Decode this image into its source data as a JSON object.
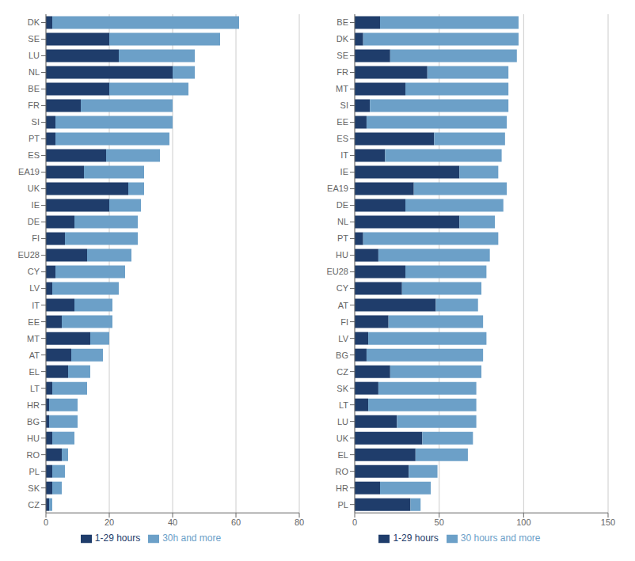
{
  "chart_data": [
    {
      "type": "bar",
      "orientation": "horizontal",
      "stacked": true,
      "categories": [
        "DK",
        "SE",
        "LU",
        "NL",
        "BE",
        "FR",
        "SI",
        "PT",
        "ES",
        "EA19",
        "UK",
        "IE",
        "DE",
        "FI",
        "EU28",
        "CY",
        "LV",
        "IT",
        "EE",
        "MT",
        "AT",
        "EL",
        "LT",
        "HR",
        "BG",
        "HU",
        "RO",
        "PL",
        "SK",
        "CZ"
      ],
      "series": [
        {
          "name": "1-29 hours",
          "color": "#1F3D6B",
          "values": [
            2,
            20,
            23,
            40,
            20,
            11,
            3,
            3,
            19,
            12,
            26,
            20,
            9,
            6,
            13,
            3,
            2,
            9,
            5,
            14,
            8,
            7,
            2,
            1,
            1,
            2,
            5,
            2,
            2,
            1
          ]
        },
        {
          "name": "30h and more",
          "color": "#6CA0C8",
          "values": [
            59,
            35,
            24,
            7,
            25,
            29,
            37,
            36,
            17,
            19,
            5,
            10,
            20,
            23,
            14,
            22,
            21,
            12,
            16,
            6,
            10,
            7,
            11,
            9,
            9,
            7,
            2,
            4,
            3,
            1
          ]
        }
      ],
      "xlim": [
        0,
        80
      ],
      "xticks": [
        0,
        20,
        40,
        60,
        80
      ],
      "grid": true,
      "legend": "bottom"
    },
    {
      "type": "bar",
      "orientation": "horizontal",
      "stacked": true,
      "categories": [
        "BE",
        "DK",
        "SE",
        "FR",
        "MT",
        "SI",
        "EE",
        "ES",
        "IT",
        "IE",
        "EA19",
        "DE",
        "NL",
        "PT",
        "HU",
        "EU28",
        "CY",
        "AT",
        "FI",
        "LV",
        "BG",
        "CZ",
        "SK",
        "LT",
        "LU",
        "UK",
        "EL",
        "RO",
        "HR",
        "PL"
      ],
      "series": [
        {
          "name": "1-29 hours",
          "color": "#1F3D6B",
          "values": [
            15,
            5,
            21,
            43,
            30,
            9,
            7,
            47,
            18,
            62,
            35,
            30,
            62,
            5,
            14,
            30,
            28,
            48,
            20,
            8,
            7,
            21,
            14,
            8,
            25,
            40,
            36,
            32,
            15,
            33
          ]
        },
        {
          "name": "30 hours and more",
          "color": "#6CA0C8",
          "values": [
            82,
            92,
            75,
            48,
            61,
            82,
            83,
            42,
            69,
            23,
            55,
            58,
            21,
            80,
            66,
            48,
            47,
            25,
            56,
            70,
            69,
            54,
            58,
            64,
            47,
            30,
            31,
            17,
            30,
            6
          ]
        }
      ],
      "xlim": [
        0,
        150
      ],
      "xticks": [
        0,
        50,
        100,
        150
      ],
      "grid": true,
      "legend": "bottom"
    }
  ]
}
